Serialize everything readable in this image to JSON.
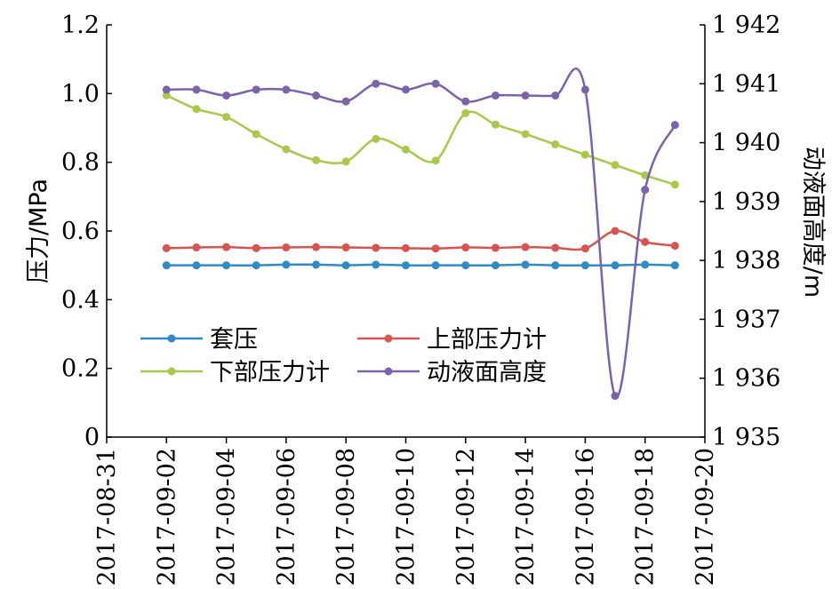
{
  "chart_data": {
    "type": "line",
    "xlabel": "",
    "ylabel": "压力/MPa",
    "y2label": "动液面高度/m",
    "x_ticks": [
      "2017-08-31",
      "2017-09-02",
      "2017-09-04",
      "2017-09-06",
      "2017-09-08",
      "2017-09-10",
      "2017-09-12",
      "2017-09-14",
      "2017-09-16",
      "2017-09-18",
      "2017-09-20"
    ],
    "xlim": [
      "2017-08-31",
      "2017-09-20"
    ],
    "ylim": [
      0,
      1.2
    ],
    "y_ticks": [
      "0",
      "0.2",
      "0.4",
      "0.6",
      "0.8",
      "1.0",
      "1.2"
    ],
    "y2lim": [
      1935,
      1942
    ],
    "y2_ticks": [
      "1 935",
      "1 936",
      "1 937",
      "1 938",
      "1 939",
      "1 940",
      "1 941",
      "1 942"
    ],
    "legend_position": "lower-left",
    "x": [
      "2017-09-02",
      "2017-09-03",
      "2017-09-04",
      "2017-09-05",
      "2017-09-06",
      "2017-09-07",
      "2017-09-08",
      "2017-09-09",
      "2017-09-10",
      "2017-09-11",
      "2017-09-12",
      "2017-09-13",
      "2017-09-14",
      "2017-09-15",
      "2017-09-16",
      "2017-09-17",
      "2017-09-18",
      "2017-09-19"
    ],
    "series": [
      {
        "name": "套压",
        "axis": "left",
        "color": "#2e8bc9",
        "values": [
          0.5,
          0.5,
          0.5,
          0.5,
          0.502,
          0.502,
          0.5,
          0.502,
          0.5,
          0.5,
          0.5,
          0.5,
          0.502,
          0.5,
          0.5,
          0.5,
          0.502,
          0.5
        ]
      },
      {
        "name": "上部压力计",
        "axis": "left",
        "color": "#d9534f",
        "values": [
          0.55,
          0.552,
          0.553,
          0.55,
          0.552,
          0.553,
          0.552,
          0.551,
          0.55,
          0.549,
          0.552,
          0.551,
          0.553,
          0.551,
          0.549,
          0.6,
          0.568,
          0.557
        ]
      },
      {
        "name": "下部压力计",
        "axis": "left",
        "color": "#a8c94a",
        "values": [
          0.995,
          0.955,
          0.932,
          0.882,
          0.838,
          0.806,
          0.802,
          0.868,
          0.837,
          0.805,
          0.943,
          0.91,
          0.882,
          0.852,
          0.822,
          0.792,
          0.762,
          0.735
        ]
      },
      {
        "name": "动液面高度",
        "axis": "right",
        "color": "#7b62ad",
        "values": [
          1940.9,
          1940.9,
          1940.8,
          1940.9,
          1940.9,
          1940.8,
          1940.7,
          1941.0,
          1940.9,
          1941.0,
          1940.7,
          1940.8,
          1940.8,
          1940.8,
          1940.9,
          1935.7,
          1939.2,
          1940.3
        ]
      }
    ]
  }
}
